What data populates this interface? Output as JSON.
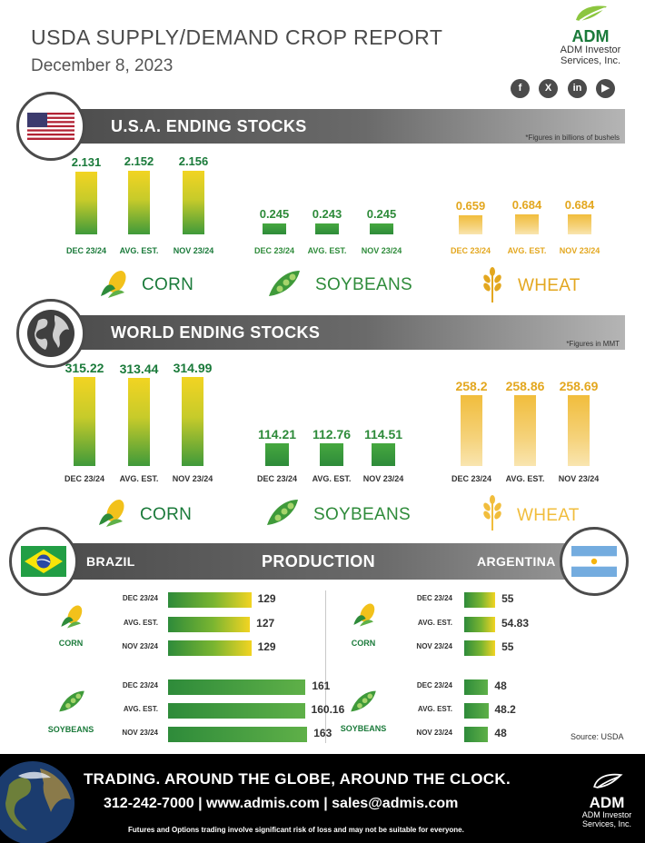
{
  "header": {
    "title": "USDA SUPPLY/DEMAND CROP REPORT",
    "date": "December 8, 2023",
    "logo_name": "ADM",
    "logo_sub1": "ADM Investor",
    "logo_sub2": "Services, Inc.",
    "social": [
      "f",
      "X",
      "in",
      "▶"
    ]
  },
  "usa_section": {
    "title": "U.S.A. ENDING STOCKS",
    "note": "*Figures in billions of bushels"
  },
  "world_section": {
    "title": "WORLD ENDING STOCKS",
    "note": "*Figures in MMT"
  },
  "production_section": {
    "title": "PRODUCTION",
    "left_country": "BRAZIL",
    "right_country": "ARGENTINA",
    "source": "Source: USDA"
  },
  "crops": {
    "corn": "CORN",
    "soybeans": "SOYBEANS",
    "wheat": "WHEAT"
  },
  "chart_data": [
    {
      "type": "bar",
      "group": "usa-corn",
      "categories": [
        "DEC 23/24",
        "AVG. EST.",
        "NOV 23/24"
      ],
      "values": [
        2.131,
        2.152,
        2.156
      ],
      "labels": [
        "2.131",
        "2.152",
        "2.156"
      ],
      "colors": {
        "value": "#1a7a3a",
        "category": "#1a7a3a"
      }
    },
    {
      "type": "bar",
      "group": "usa-soybeans",
      "categories": [
        "DEC 23/24",
        "AVG. EST.",
        "NOV 23/24"
      ],
      "values": [
        0.245,
        0.243,
        0.245
      ],
      "labels": [
        "0.245",
        "0.243",
        "0.245"
      ],
      "colors": {
        "value": "#2e8b3a",
        "category": "#2e8b3a"
      }
    },
    {
      "type": "bar",
      "group": "usa-wheat",
      "categories": [
        "DEC 23/24",
        "AVG. EST.",
        "NOV 23/24"
      ],
      "values": [
        0.659,
        0.684,
        0.684
      ],
      "labels": [
        "0.659",
        "0.684",
        "0.684"
      ],
      "colors": {
        "value": "#e3a71f",
        "category": "#e3a71f"
      }
    },
    {
      "type": "bar",
      "group": "world-corn",
      "categories": [
        "DEC 23/24",
        "AVG. EST.",
        "NOV 23/24"
      ],
      "values": [
        315.22,
        313.44,
        314.99
      ],
      "labels": [
        "315.22",
        "313.44",
        "314.99"
      ],
      "colors": {
        "value": "#1a7a3a",
        "category": "#333333"
      }
    },
    {
      "type": "bar",
      "group": "world-soybeans",
      "categories": [
        "DEC 23/24",
        "AVG. EST.",
        "NOV 23/24"
      ],
      "values": [
        114.21,
        112.76,
        114.51
      ],
      "labels": [
        "114.21",
        "112.76",
        "114.51"
      ],
      "colors": {
        "value": "#2e8b3a",
        "category": "#333333"
      }
    },
    {
      "type": "bar",
      "group": "world-wheat",
      "categories": [
        "DEC 23/24",
        "AVG. EST.",
        "NOV 23/24"
      ],
      "values": [
        258.2,
        258.86,
        258.69
      ],
      "labels": [
        "258.2",
        "258.86",
        "258.69"
      ],
      "colors": {
        "value": "#e3a71f",
        "category": "#333333"
      }
    },
    {
      "type": "bar",
      "orientation": "horizontal",
      "group": "brazil-corn",
      "categories": [
        "DEC 23/24",
        "AVG. EST.",
        "NOV 23/24"
      ],
      "values": [
        129,
        127,
        129
      ],
      "labels": [
        "129",
        "127",
        "129"
      ]
    },
    {
      "type": "bar",
      "orientation": "horizontal",
      "group": "brazil-soybeans",
      "categories": [
        "DEC 23/24",
        "AVG. EST.",
        "NOV 23/24"
      ],
      "values": [
        161,
        160.16,
        163
      ],
      "labels": [
        "161",
        "160.16",
        "163"
      ]
    },
    {
      "type": "bar",
      "orientation": "horizontal",
      "group": "argentina-corn",
      "categories": [
        "DEC 23/24",
        "AVG. EST.",
        "NOV 23/24"
      ],
      "values": [
        55,
        54.83,
        55
      ],
      "labels": [
        "55",
        "54.83",
        "55"
      ]
    },
    {
      "type": "bar",
      "orientation": "horizontal",
      "group": "argentina-soybeans",
      "categories": [
        "DEC 23/24",
        "AVG. EST.",
        "NOV 23/24"
      ],
      "values": [
        48,
        48.2,
        48
      ],
      "labels": [
        "48",
        "48.2",
        "48"
      ]
    }
  ],
  "footer": {
    "tagline": "TRADING. AROUND THE GLOBE, AROUND THE CLOCK.",
    "contact": "312-242-7000  |  www.admis.com  |  sales@admis.com",
    "disclaimer": "Futures and Options trading involve significant risk of loss and may not be suitable for everyone.",
    "logo_name": "ADM",
    "logo_sub1": "ADM Investor",
    "logo_sub2": "Services, Inc."
  }
}
